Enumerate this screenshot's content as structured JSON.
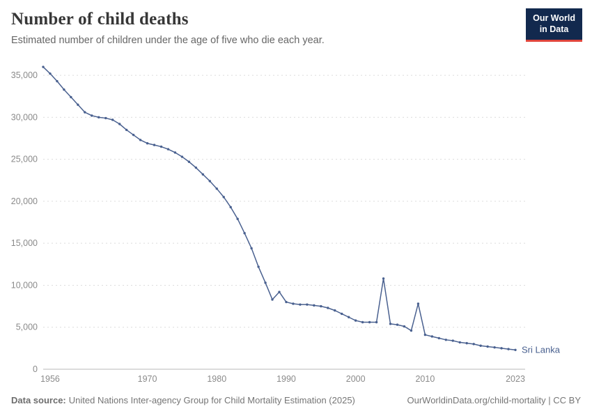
{
  "header": {
    "title": "Number of child deaths",
    "subtitle": "Estimated number of children under the age of five who die each year.",
    "logo_lines": [
      "Our World",
      "in Data"
    ]
  },
  "footer": {
    "source_label": "Data source:",
    "source_text": "United Nations Inter-agency Group for Child Mortality Estimation (2025)",
    "right_text": "OurWorldinData.org/child-mortality | CC BY"
  },
  "chart_data": {
    "type": "line",
    "title": "Number of child deaths",
    "entity_label": "Sri Lanka",
    "line_color": "#49608f",
    "grid": true,
    "xlabel": "",
    "ylabel": "",
    "xlim": [
      1955,
      2023
    ],
    "ylim": [
      0,
      36500
    ],
    "x_ticks": [
      1956,
      1970,
      1980,
      1990,
      2000,
      2010,
      2023
    ],
    "y_ticks": [
      0,
      5000,
      10000,
      15000,
      20000,
      25000,
      30000,
      35000
    ],
    "x": [
      1955,
      1956,
      1957,
      1958,
      1959,
      1960,
      1961,
      1962,
      1963,
      1964,
      1965,
      1966,
      1967,
      1968,
      1969,
      1970,
      1971,
      1972,
      1973,
      1974,
      1975,
      1976,
      1977,
      1978,
      1979,
      1980,
      1981,
      1982,
      1983,
      1984,
      1985,
      1986,
      1987,
      1988,
      1989,
      1990,
      1991,
      1992,
      1993,
      1994,
      1995,
      1996,
      1997,
      1998,
      1999,
      2000,
      2001,
      2002,
      2003,
      2004,
      2005,
      2006,
      2007,
      2008,
      2009,
      2010,
      2011,
      2012,
      2013,
      2014,
      2015,
      2016,
      2017,
      2018,
      2019,
      2020,
      2021,
      2022,
      2023
    ],
    "values": [
      36000,
      35200,
      34300,
      33300,
      32400,
      31500,
      30600,
      30200,
      30000,
      29900,
      29700,
      29200,
      28500,
      27900,
      27300,
      26900,
      26700,
      26500,
      26200,
      25800,
      25300,
      24700,
      24000,
      23200,
      22400,
      21500,
      20500,
      19300,
      17900,
      16200,
      14400,
      12200,
      10300,
      8300,
      9200,
      8000,
      7800,
      7700,
      7700,
      7600,
      7500,
      7300,
      7000,
      6600,
      6200,
      5800,
      5600,
      5600,
      5600,
      10800,
      5400,
      5300,
      5100,
      4600,
      7800,
      4100,
      3900,
      3700,
      3500,
      3400,
      3200,
      3100,
      3000,
      2800,
      2700,
      2600,
      2500,
      2400,
      2300
    ]
  }
}
